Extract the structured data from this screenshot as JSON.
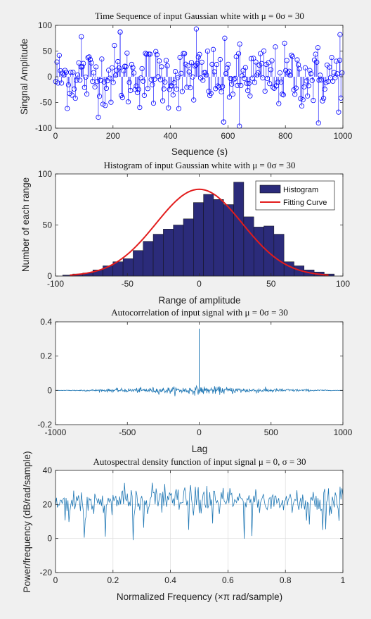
{
  "chart_data": [
    {
      "type": "stem",
      "title": "Time Sequence of input Gaussian white with μ = 0σ = 30",
      "xlabel": "Sequence (s)",
      "ylabel": "Singnal Amplitude",
      "xlim": [
        0,
        1000
      ],
      "ylim": [
        -100,
        100
      ],
      "xticks": [
        0,
        200,
        400,
        600,
        800,
        1000
      ],
      "yticks": [
        -100,
        -50,
        0,
        50,
        100
      ],
      "grid": false,
      "series": [
        {
          "color": "#0000ff",
          "marker": "open-circle",
          "n_points": 1000,
          "mean": 0,
          "std": 30,
          "notable_points": [
            [
              90,
              78
            ],
            [
              225,
              87
            ],
            [
              490,
              93
            ],
            [
              585,
              -88
            ],
            [
              640,
              -96
            ],
            [
              915,
              -90
            ],
            [
              990,
              82
            ]
          ]
        }
      ]
    },
    {
      "type": "bar",
      "title": "Histogram of input Gaussian white with μ = 0σ = 30",
      "xlabel": "Range of amplitude",
      "ylabel": "Number of each range",
      "xlim": [
        -100,
        100
      ],
      "ylim": [
        0,
        100
      ],
      "xticks": [
        -100,
        -50,
        0,
        50,
        100
      ],
      "yticks": [
        0,
        50,
        100
      ],
      "grid": false,
      "legend_position": "top-right",
      "bin_edges": [
        -95,
        -88,
        -81,
        -74,
        -67,
        -60,
        -53,
        -46,
        -39,
        -32,
        -25,
        -18,
        -11,
        -4,
        3,
        10,
        17,
        24,
        31,
        38,
        45,
        52,
        59,
        66,
        73,
        80,
        87,
        94
      ],
      "series": [
        {
          "name": "Histogram",
          "color": "#2b2b7a",
          "values": [
            1,
            2,
            3,
            6,
            10,
            14,
            17,
            25,
            34,
            41,
            46,
            50,
            56,
            72,
            80,
            75,
            70,
            92,
            58,
            48,
            49,
            41,
            14,
            10,
            6,
            4,
            2
          ]
        },
        {
          "name": "Fitting Curve",
          "color": "#e21c1c",
          "type": "line",
          "peak": 85,
          "mean": 0,
          "std": 30
        }
      ]
    },
    {
      "type": "line",
      "title": "Autocorrelation of input signal with μ = 0σ = 30",
      "xlabel": "Lag",
      "ylabel": "",
      "xlim": [
        -1000,
        1000
      ],
      "ylim": [
        -0.2,
        0.4
      ],
      "xticks": [
        -1000,
        -500,
        0,
        500,
        1000
      ],
      "yticks": [
        -0.2,
        0,
        0.2,
        0.4
      ],
      "grid": false,
      "series": [
        {
          "color": "#1f77b4",
          "peak": {
            "x": 0,
            "y": 0.36
          },
          "noise_amplitude": 0.012
        }
      ]
    },
    {
      "type": "line",
      "title": "Autospectral density function of input signal μ = 0, σ = 30",
      "xlabel": "Normalized Frequency (×π rad/sample)",
      "ylabel": "Power/frequency (dB/rad/sample)",
      "xlim": [
        0,
        1
      ],
      "ylim": [
        -20,
        40
      ],
      "xticks": [
        0,
        0.2,
        0.4,
        0.6,
        0.8,
        1
      ],
      "yticks": [
        -20,
        0,
        20,
        40
      ],
      "grid": true,
      "series": [
        {
          "color": "#1f77b4",
          "mean_db": 22,
          "spread_db": 4,
          "notable_points": [
            [
              0.1,
              0.5
            ],
            [
              0.27,
              -1
            ],
            [
              0.38,
              32
            ],
            [
              0.93,
              5
            ]
          ]
        }
      ]
    }
  ]
}
